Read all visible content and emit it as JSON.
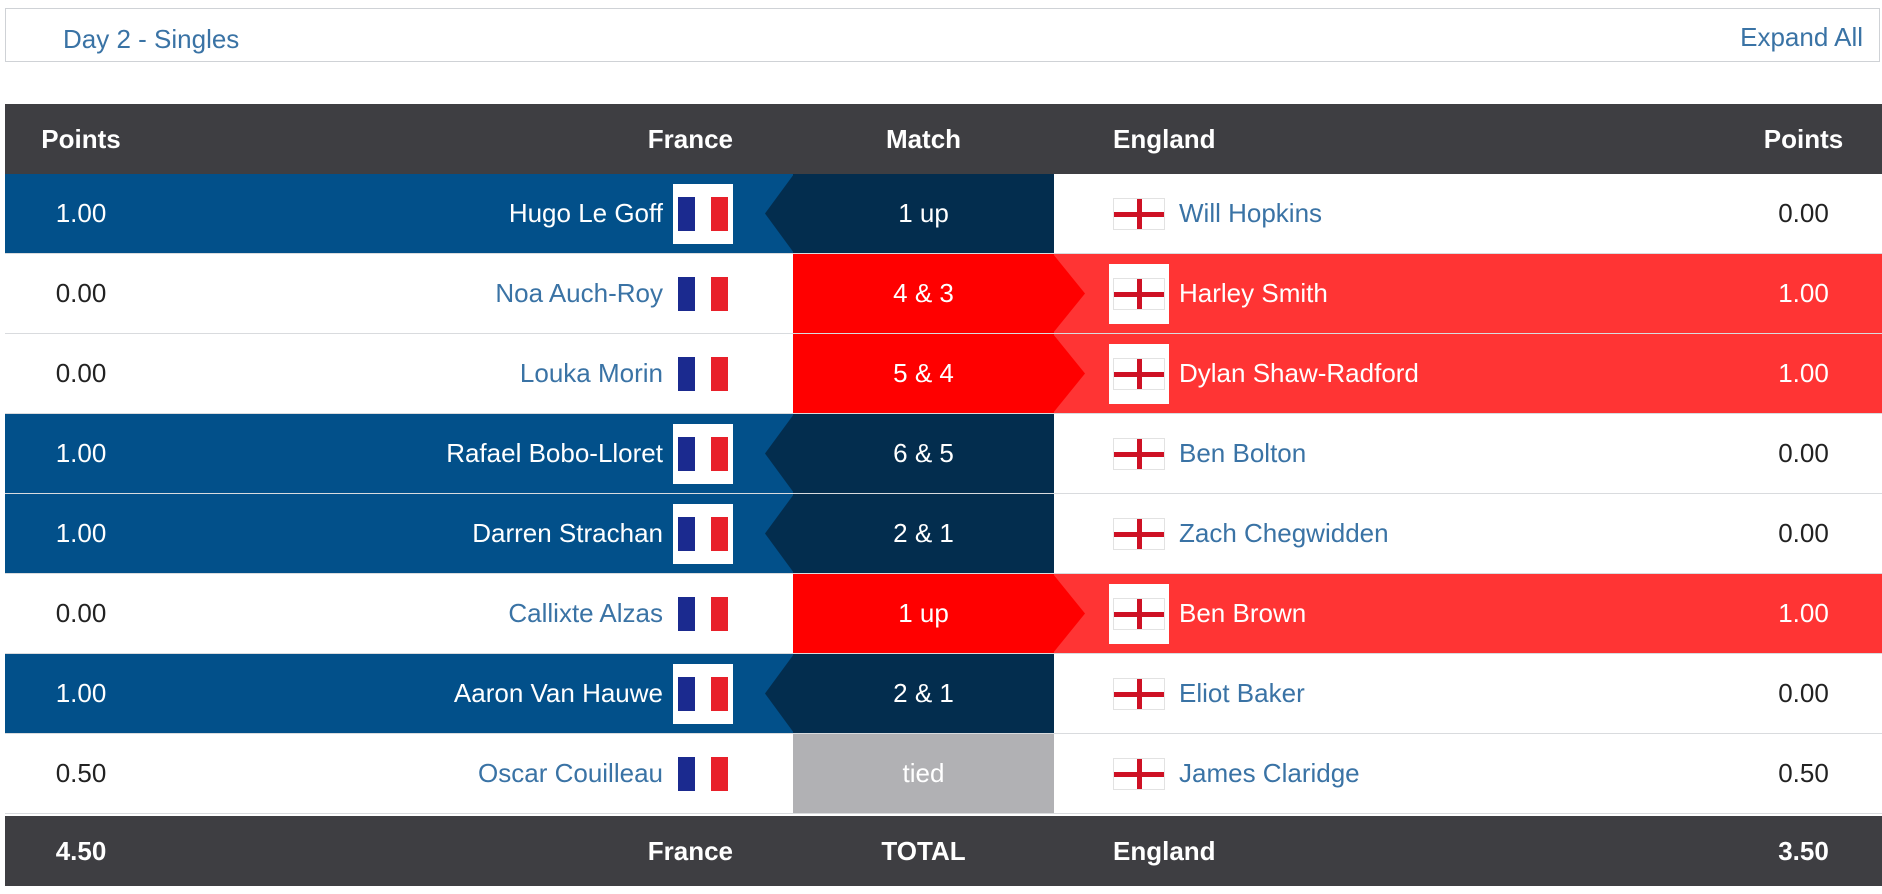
{
  "header_bar": {
    "title": "Day 2 - Singles",
    "expand_label": "Expand All"
  },
  "columns": {
    "left_points": "Points",
    "left_team": "France",
    "match": "Match",
    "right_team": "England",
    "right_points": "Points"
  },
  "colors": {
    "france_win": "#02508a",
    "france_win_match": "#032d4e",
    "england_win": "#ff3434",
    "england_win_match": "#ff0000",
    "tied": "#b1b1b4",
    "header": "#3e3e42",
    "link": "#3a73a5"
  },
  "rows": [
    {
      "fr_points": "1.00",
      "fr_player": "Hugo Le Goff",
      "result": "1 up",
      "en_player": "Will Hopkins",
      "en_points": "0.00",
      "winner": "fr"
    },
    {
      "fr_points": "0.00",
      "fr_player": "Noa Auch-Roy",
      "result": "4 & 3",
      "en_player": "Harley Smith",
      "en_points": "1.00",
      "winner": "en"
    },
    {
      "fr_points": "0.00",
      "fr_player": "Louka Morin",
      "result": "5 & 4",
      "en_player": "Dylan Shaw-Radford",
      "en_points": "1.00",
      "winner": "en"
    },
    {
      "fr_points": "1.00",
      "fr_player": "Rafael Bobo-Lloret",
      "result": "6 & 5",
      "en_player": "Ben Bolton",
      "en_points": "0.00",
      "winner": "fr"
    },
    {
      "fr_points": "1.00",
      "fr_player": "Darren Strachan",
      "result": "2 & 1",
      "en_player": "Zach Chegwidden",
      "en_points": "0.00",
      "winner": "fr"
    },
    {
      "fr_points": "0.00",
      "fr_player": "Callixte Alzas",
      "result": "1 up",
      "en_player": "Ben Brown",
      "en_points": "1.00",
      "winner": "en"
    },
    {
      "fr_points": "1.00",
      "fr_player": "Aaron Van Hauwe",
      "result": "2 & 1",
      "en_player": "Eliot Baker",
      "en_points": "0.00",
      "winner": "fr"
    },
    {
      "fr_points": "0.50",
      "fr_player": "Oscar Couilleau",
      "result": "tied",
      "en_player": "James Claridge",
      "en_points": "0.50",
      "winner": "tie"
    }
  ],
  "totals": {
    "fr_points": "4.50",
    "fr_team": "France",
    "label": "TOTAL",
    "en_team": "England",
    "en_points": "3.50"
  }
}
